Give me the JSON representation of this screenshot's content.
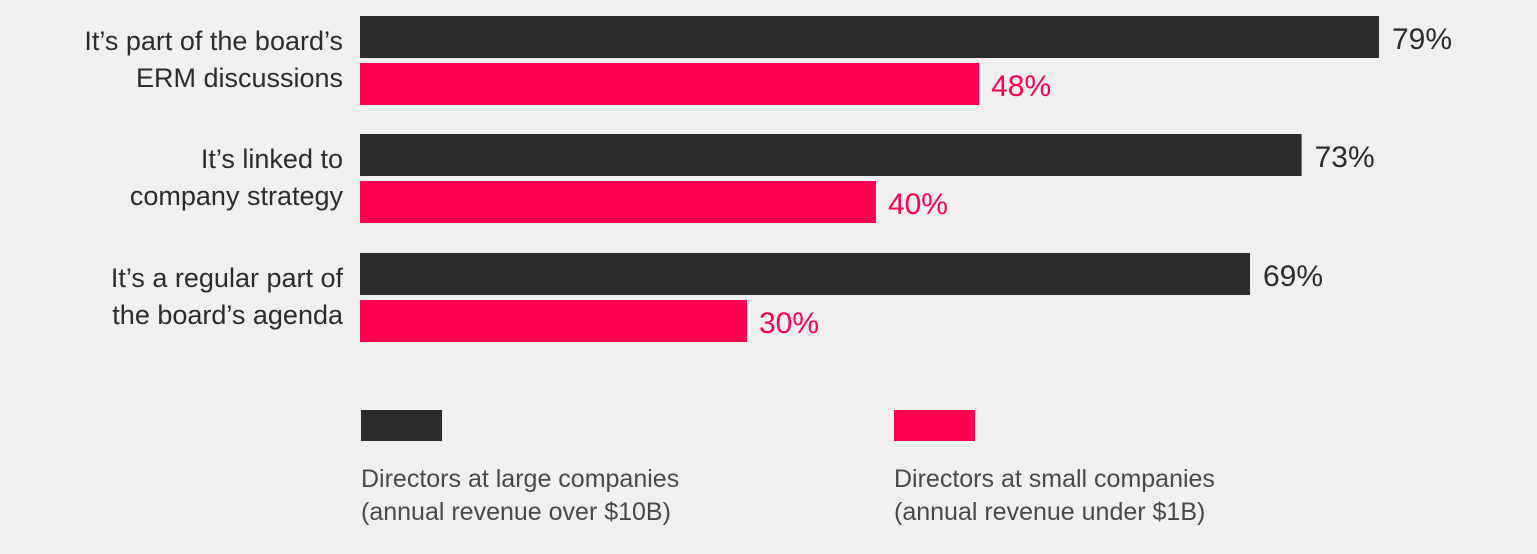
{
  "chart_data": {
    "type": "bar",
    "orientation": "horizontal",
    "categories": [
      [
        "It’s part of the board’s",
        "ERM discussions"
      ],
      [
        "It’s linked to",
        "company strategy"
      ],
      [
        "It’s a regular part of",
        "the board’s agenda"
      ]
    ],
    "series": [
      {
        "name": "Directors at large companies (annual revenue over $10B)",
        "legend_lines": [
          "Directors at large companies",
          "(annual revenue over $10B)"
        ],
        "color": "#2d2c2c",
        "values": [
          79,
          73,
          69
        ],
        "labels": [
          "79%",
          "73%",
          "69%"
        ]
      },
      {
        "name": "Directors at small companies (annual revenue under $1B)",
        "legend_lines": [
          "Directors at small companies",
          "(annual revenue under $1B)"
        ],
        "color": "#fe0050",
        "values": [
          48,
          40,
          30
        ],
        "labels": [
          "48%",
          "40%",
          "30%"
        ]
      }
    ],
    "xlim": [
      0,
      100
    ],
    "grid": false,
    "legend_position": "bottom"
  }
}
